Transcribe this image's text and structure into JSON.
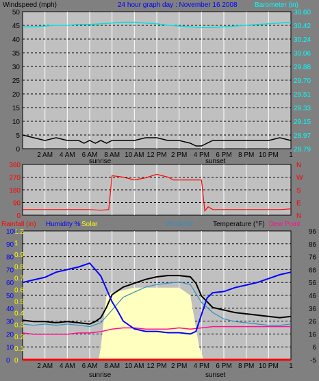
{
  "colors": {
    "background": "#808080",
    "plot_bg": "#c0c0c0",
    "grid": "#ffffff",
    "windspeed": "#000000",
    "wind_avg": "#1010c0",
    "barometer": "#00e0e0",
    "direction": "#ff0000",
    "humidity": "#0000ff",
    "solar": "#ffffc0",
    "rain": "#ff0000",
    "windchill": "#3090c0",
    "temperature": "#000000",
    "dewpoint": "#ff1090",
    "axis_black": "#000000",
    "axis_blue": "#0000ff",
    "axis_red": "#ff0000",
    "axis_cyan": "#00ffff",
    "axis_yellow": "#ffff00"
  },
  "header": {
    "windspeed_label": "Windspeed (mph)",
    "title": "24 hour graph day : November 16 2008",
    "barometer_label": "Barometer (in)"
  },
  "legend3": {
    "rainfall": "Rainfall (in)",
    "humidity": "Humidity %",
    "solar": "Solar",
    "windchill": "Windchill",
    "temperature": "Temperature (°F)",
    "dewpoint": "Dew Point"
  },
  "markers": {
    "sunrise": "sunrise",
    "sunset": "sunset"
  },
  "time_labels": [
    "2 AM",
    "4 AM",
    "6 AM",
    "8 AM",
    "10 AM",
    "12 PM",
    "2 PM",
    "4 PM",
    "6 PM",
    "8 PM",
    "10 PM",
    "1"
  ],
  "wind_axis": [
    "50",
    "45",
    "40",
    "35",
    "30",
    "25",
    "20",
    "15",
    "10",
    "5",
    "0"
  ],
  "baro_axis": [
    "30.60",
    "30.42",
    "30.24",
    "30.06",
    "29.88",
    "29.70",
    "29.51",
    "29.33",
    "29.15",
    "28.97",
    "28.79"
  ],
  "dir_axis": [
    "360",
    "270",
    "180",
    "90",
    "0"
  ],
  "dir_letters": [
    "N",
    "W",
    "S",
    "E",
    "N"
  ],
  "hum_axis": [
    "100",
    "90",
    "80",
    "70",
    "60",
    "50",
    "40",
    "30",
    "20",
    "10",
    "0"
  ],
  "rain_axis": [
    "1.2",
    "1",
    "0.9",
    "0.8",
    "0.7",
    "0.6",
    "0.5",
    "0.4",
    "0.3",
    "0.2",
    "0.1",
    "0"
  ],
  "temp_axis": [
    "96",
    "86",
    "76",
    "66",
    "56",
    "46",
    "36",
    "26",
    "16",
    "6",
    "-5"
  ],
  "chart_data": [
    {
      "type": "line",
      "title": "24 hour graph day : November 16 2008",
      "xlabel": "",
      "ylabel": "Windspeed (mph)",
      "ylim": [
        0,
        50
      ],
      "y2label": "Barometer (in)",
      "y2lim": [
        28.79,
        30.6
      ],
      "x_hours": [
        0,
        24
      ],
      "series": [
        {
          "x": [
            0,
            1,
            2,
            3,
            4,
            5,
            5.5,
            6,
            6.5,
            7,
            7.5,
            8,
            9,
            10,
            11,
            12,
            13,
            14,
            15,
            15.5,
            16,
            17,
            18,
            19,
            20,
            21,
            22,
            23,
            24
          ],
          "values": [
            5,
            4,
            3,
            4,
            3,
            3,
            2,
            3,
            2,
            3,
            2,
            3,
            3,
            3,
            4,
            4,
            3,
            3,
            2,
            1,
            1,
            3,
            3,
            3,
            3,
            3,
            3,
            4,
            3
          ]
        },
        {
          "x": [
            0,
            1,
            2,
            3,
            4,
            5,
            6,
            7,
            8,
            9,
            10,
            11,
            12,
            13,
            14,
            15,
            16,
            17,
            18,
            19,
            20,
            21,
            22,
            23,
            24
          ],
          "values": [
            30.4,
            30.4,
            30.41,
            30.42,
            30.42,
            30.43,
            30.43,
            30.44,
            30.45,
            30.46,
            30.46,
            30.45,
            30.44,
            30.42,
            30.41,
            30.4,
            30.39,
            30.39,
            30.4,
            30.41,
            30.42,
            30.43,
            30.44,
            30.45,
            30.46
          ]
        }
      ]
    },
    {
      "type": "line",
      "ylabel": "",
      "ylim": [
        0,
        360
      ],
      "x_hours": [
        0,
        24
      ],
      "series": [
        {
          "x": [
            0,
            2,
            4,
            6,
            7,
            7.7,
            8,
            9,
            10,
            11,
            12,
            13,
            13.5,
            14,
            15,
            16,
            16.3,
            16.6,
            17,
            18,
            19,
            20,
            21,
            22,
            23,
            24
          ],
          "values": [
            40,
            40,
            40,
            40,
            35,
            40,
            280,
            270,
            250,
            265,
            290,
            270,
            250,
            250,
            250,
            250,
            30,
            60,
            40,
            40,
            40,
            40,
            40,
            40,
            40,
            45
          ]
        }
      ]
    },
    {
      "type": "line",
      "ylabel": "Humidity %",
      "ylim": [
        0,
        100
      ],
      "y2label": "Temperature (°F)",
      "y2lim": [
        -5,
        96
      ],
      "x_hours": [
        0,
        24
      ],
      "series": [
        {
          "x": [
            0,
            1,
            2,
            3,
            4,
            5,
            6,
            6.5,
            7,
            7.5,
            8,
            8.5,
            9,
            10,
            11,
            12,
            13,
            14,
            15,
            15.5,
            16,
            16.5,
            17,
            18,
            19,
            20,
            21,
            22,
            23,
            24
          ],
          "values": [
            60,
            62,
            64,
            68,
            70,
            72,
            75,
            70,
            65,
            55,
            45,
            38,
            30,
            24,
            22,
            22,
            21,
            21,
            20,
            22,
            35,
            48,
            52,
            53,
            56,
            58,
            60,
            63,
            66,
            68
          ]
        },
        {
          "x": [
            0,
            6.8,
            7,
            7.5,
            8,
            9,
            10,
            11,
            12,
            13,
            14,
            15,
            15.8,
            16.2
          ],
          "values": [
            0,
            0,
            10,
            50,
            52,
            54,
            56,
            56,
            56,
            56,
            56,
            50,
            10,
            0
          ]
        },
        {
          "x": [
            0,
            24
          ],
          "values": [
            0,
            0
          ]
        },
        {
          "x": [
            0,
            1,
            2,
            3,
            4,
            5,
            6,
            7,
            8,
            9,
            10,
            11,
            12,
            13,
            14,
            15,
            16,
            17,
            18,
            19,
            20,
            21,
            22,
            23,
            24
          ],
          "values": [
            23,
            22,
            23,
            22,
            23,
            22,
            21,
            24,
            34,
            44,
            48,
            52,
            54,
            55,
            56,
            54,
            40,
            32,
            27,
            25,
            24,
            23,
            22,
            22,
            23
          ]
        },
        {
          "x": [
            0,
            1,
            2,
            3,
            4,
            5,
            6,
            6.5,
            7,
            7.5,
            8,
            9,
            10,
            11,
            12,
            13,
            14,
            15,
            15.5,
            16,
            17,
            18,
            19,
            20,
            21,
            22,
            23,
            24
          ],
          "values": [
            26,
            25,
            25,
            24,
            25,
            24,
            23,
            25,
            28,
            36,
            46,
            52,
            55,
            58,
            60,
            61,
            61,
            60,
            55,
            45,
            36,
            34,
            32,
            31,
            30,
            29,
            28,
            29
          ]
        },
        {
          "x": [
            0,
            1,
            2,
            3,
            4,
            5,
            6,
            7,
            8,
            9,
            10,
            11,
            12,
            13,
            14,
            15,
            16,
            17,
            18,
            19,
            20,
            21,
            22,
            23,
            24
          ],
          "values": [
            16,
            15,
            15,
            15,
            15,
            16,
            16,
            17,
            19,
            20,
            20,
            19,
            19,
            19,
            20,
            19,
            20,
            21,
            21,
            21,
            21,
            21,
            21,
            21,
            21
          ]
        }
      ]
    }
  ]
}
